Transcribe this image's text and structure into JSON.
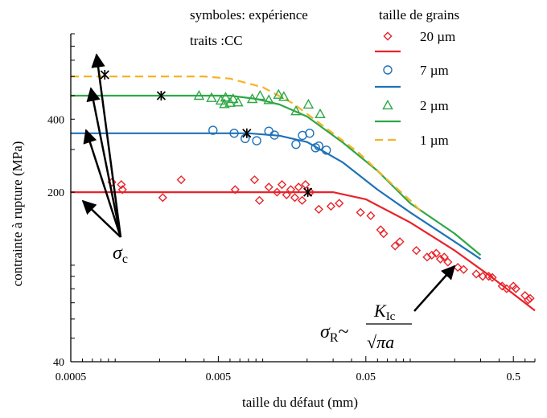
{
  "chart_data": {
    "type": "scatter",
    "title": "",
    "xlabel": "taille du défaut (mm)",
    "ylabel": "contrainte à rupture (MPa)",
    "x_scale": "log",
    "y_scale": "log",
    "xlim": [
      0.0005,
      0.7
    ],
    "ylim": [
      40,
      900
    ],
    "x_ticks": [
      {
        "value": 0.0005,
        "label": "0.0005"
      },
      {
        "value": 0.005,
        "label": "0.005"
      },
      {
        "value": 0.05,
        "label": "0.05"
      },
      {
        "value": 0.5,
        "label": "0.5"
      }
    ],
    "y_ticks": [
      {
        "value": 40,
        "label": "40"
      },
      {
        "value": 200,
        "label": "200"
      },
      {
        "value": 400,
        "label": "400"
      }
    ],
    "notes": {
      "symbols": "symboles: expérience",
      "lines": "traits :CC",
      "legend_title": "taille de grains"
    },
    "legend_entries": [
      {
        "kind": "symbol",
        "series": 0,
        "label": "20 µm"
      },
      {
        "kind": "line",
        "series": 0,
        "label": ""
      },
      {
        "kind": "symbol",
        "series": 1,
        "label": "7 µm"
      },
      {
        "kind": "line",
        "series": 1,
        "label": ""
      },
      {
        "kind": "symbol",
        "series": 2,
        "label": "2 µm"
      },
      {
        "kind": "line",
        "series": 2,
        "label": ""
      },
      {
        "kind": "line",
        "series": 3,
        "label": "1 µm"
      }
    ],
    "series": [
      {
        "name": "20 µm",
        "color": "#e8232a",
        "marker": "diamond",
        "experiment": [
          [
            0.00095,
            220
          ],
          [
            0.0011,
            215
          ],
          [
            0.00112,
            205
          ],
          [
            0.0021,
            190
          ],
          [
            0.0028,
            225
          ],
          [
            0.0065,
            205
          ],
          [
            0.0088,
            225
          ],
          [
            0.0095,
            185
          ],
          [
            0.011,
            210
          ],
          [
            0.0125,
            200
          ],
          [
            0.0135,
            215
          ],
          [
            0.0145,
            195
          ],
          [
            0.0155,
            205
          ],
          [
            0.0165,
            190
          ],
          [
            0.0175,
            210
          ],
          [
            0.0185,
            185
          ],
          [
            0.0195,
            215
          ],
          [
            0.021,
            200
          ],
          [
            0.024,
            170
          ],
          [
            0.029,
            175
          ],
          [
            0.033,
            180
          ],
          [
            0.046,
            165
          ],
          [
            0.054,
            160
          ],
          [
            0.063,
            140
          ],
          [
            0.066,
            135
          ],
          [
            0.079,
            120
          ],
          [
            0.085,
            125
          ],
          [
            0.11,
            115
          ],
          [
            0.13,
            108
          ],
          [
            0.14,
            110
          ],
          [
            0.15,
            112
          ],
          [
            0.16,
            106
          ],
          [
            0.17,
            108
          ],
          [
            0.18,
            103
          ],
          [
            0.21,
            98
          ],
          [
            0.23,
            96
          ],
          [
            0.28,
            92
          ],
          [
            0.31,
            90
          ],
          [
            0.34,
            90
          ],
          [
            0.36,
            89
          ],
          [
            0.42,
            82
          ],
          [
            0.45,
            80
          ],
          [
            0.5,
            82
          ],
          [
            0.52,
            80
          ],
          [
            0.6,
            75
          ],
          [
            0.63,
            72
          ],
          [
            0.65,
            73
          ]
        ],
        "model_line": [
          [
            0.0005,
            200
          ],
          [
            0.03,
            200
          ],
          [
            0.05,
            187
          ],
          [
            0.1,
            150
          ],
          [
            0.2,
            115
          ],
          [
            0.35,
            90
          ],
          [
            0.7,
            65
          ]
        ]
      },
      {
        "name": "7 µm",
        "color": "#1f72b8",
        "marker": "circle",
        "experiment": [
          [
            0.0046,
            360
          ],
          [
            0.0064,
            350
          ],
          [
            0.0076,
            333
          ],
          [
            0.0091,
            326
          ],
          [
            0.011,
            357
          ],
          [
            0.012,
            344
          ],
          [
            0.0168,
            315
          ],
          [
            0.0186,
            343
          ],
          [
            0.0208,
            350
          ],
          [
            0.0228,
            305
          ],
          [
            0.024,
            310
          ],
          [
            0.027,
            298
          ]
        ],
        "model_line": [
          [
            0.0005,
            350
          ],
          [
            0.008,
            350
          ],
          [
            0.013,
            342
          ],
          [
            0.02,
            322
          ],
          [
            0.035,
            265
          ],
          [
            0.06,
            205
          ],
          [
            0.1,
            165
          ],
          [
            0.2,
            125
          ],
          [
            0.3,
            106
          ]
        ]
      },
      {
        "name": "2 µm",
        "color": "#2ea844",
        "marker": "triangle",
        "experiment": [
          [
            0.0037,
            500
          ],
          [
            0.0045,
            490
          ],
          [
            0.0052,
            478
          ],
          [
            0.0055,
            462
          ],
          [
            0.0056,
            492
          ],
          [
            0.006,
            468
          ],
          [
            0.0063,
            485
          ],
          [
            0.0068,
            470
          ],
          [
            0.0085,
            485
          ],
          [
            0.0096,
            500
          ],
          [
            0.011,
            480
          ],
          [
            0.0128,
            505
          ],
          [
            0.0139,
            495
          ],
          [
            0.0168,
            432
          ],
          [
            0.0204,
            460
          ],
          [
            0.0245,
            420
          ]
        ],
        "model_line": [
          [
            0.0005,
            500
          ],
          [
            0.006,
            500
          ],
          [
            0.009,
            485
          ],
          [
            0.013,
            460
          ],
          [
            0.02,
            410
          ],
          [
            0.035,
            320
          ],
          [
            0.06,
            245
          ],
          [
            0.1,
            180
          ],
          [
            0.2,
            135
          ],
          [
            0.3,
            110
          ]
        ]
      },
      {
        "name": "1 µm",
        "color": "#f5b325",
        "marker": "none",
        "experiment": [],
        "model_line": [
          [
            0.0005,
            600
          ],
          [
            0.004,
            600
          ],
          [
            0.006,
            588
          ],
          [
            0.01,
            542
          ],
          [
            0.016,
            465
          ],
          [
            0.025,
            380
          ],
          [
            0.045,
            290
          ],
          [
            0.07,
            225
          ],
          [
            0.1,
            185
          ],
          [
            0.12,
            165
          ]
        ]
      }
    ],
    "sigma_c_points": [
      {
        "x": 0.00085,
        "y": 610
      },
      {
        "x": 0.00205,
        "y": 500
      },
      {
        "x": 0.0078,
        "y": 350
      },
      {
        "x": 0.0202,
        "y": 200
      }
    ],
    "annotations": [
      {
        "id": "sigma_c",
        "label_base": "σ",
        "label_sub": "c"
      },
      {
        "id": "sigma_r",
        "label_base": "σ",
        "label_sub": "R",
        "tilde": "~",
        "numerator_base": "K",
        "numerator_sub": "Ic",
        "denominator": "√πa"
      }
    ]
  }
}
